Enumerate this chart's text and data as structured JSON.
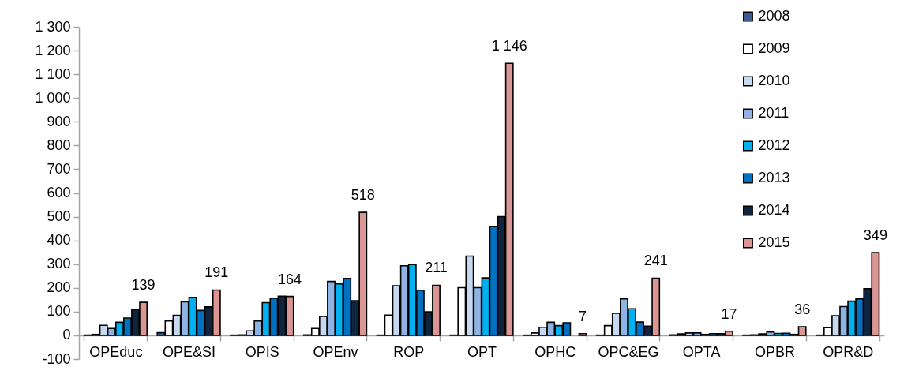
{
  "chart_data": {
    "type": "bar",
    "categories": [
      "OPEduc",
      "OPE&SI",
      "OPIS",
      "OPEnv",
      "ROP",
      "OPT",
      "OPHC",
      "OPC&EG",
      "OPTA",
      "OPBR",
      "OPR&D"
    ],
    "series": [
      {
        "name": "2008",
        "color": "#3a5f8f",
        "values": [
          1,
          11,
          1,
          2,
          1,
          1,
          1,
          1,
          2,
          1,
          1
        ]
      },
      {
        "name": "2009",
        "color": "#ffffff",
        "values": [
          4,
          61,
          2,
          29,
          85,
          201,
          10,
          41,
          6,
          2,
          32
        ]
      },
      {
        "name": "2010",
        "color": "#c6d9f1",
        "values": [
          42,
          84,
          19,
          80,
          209,
          334,
          34,
          93,
          10,
          6,
          83
        ]
      },
      {
        "name": "2011",
        "color": "#8eb4e3",
        "values": [
          29,
          141,
          61,
          227,
          293,
          201,
          55,
          154,
          10,
          14,
          121
        ]
      },
      {
        "name": "2012",
        "color": "#00b0f0",
        "values": [
          55,
          160,
          138,
          217,
          298,
          242,
          41,
          112,
          4,
          8,
          144
        ]
      },
      {
        "name": "2013",
        "color": "#0070c0",
        "values": [
          73,
          105,
          156,
          240,
          190,
          458,
          53,
          56,
          7,
          9,
          154
        ]
      },
      {
        "name": "2014",
        "color": "#10243e",
        "values": [
          110,
          120,
          165,
          146,
          99,
          500,
          null,
          39,
          7,
          4,
          197
        ]
      },
      {
        "name": "2015",
        "color": "#d99694",
        "values": [
          139,
          191,
          164,
          518,
          211,
          1146,
          7,
          241,
          17,
          36,
          349
        ],
        "value_labels": [
          "139",
          "191",
          "164",
          "518",
          "211",
          "1 146",
          "7",
          "241",
          "17",
          "36",
          "349"
        ]
      }
    ],
    "ylim": [
      -100,
      1300
    ],
    "yticks": [
      {
        "value": -100,
        "label": "-100"
      },
      0,
      100,
      200,
      300,
      400,
      500,
      600,
      700,
      800,
      900,
      {
        "value": 1000,
        "label": "1 000"
      },
      {
        "value": 1100,
        "label": "1 100"
      },
      {
        "value": 1200,
        "label": "1 200"
      },
      {
        "value": 1300,
        "label": "1 300"
      }
    ],
    "grid": false,
    "legend": "top right"
  }
}
